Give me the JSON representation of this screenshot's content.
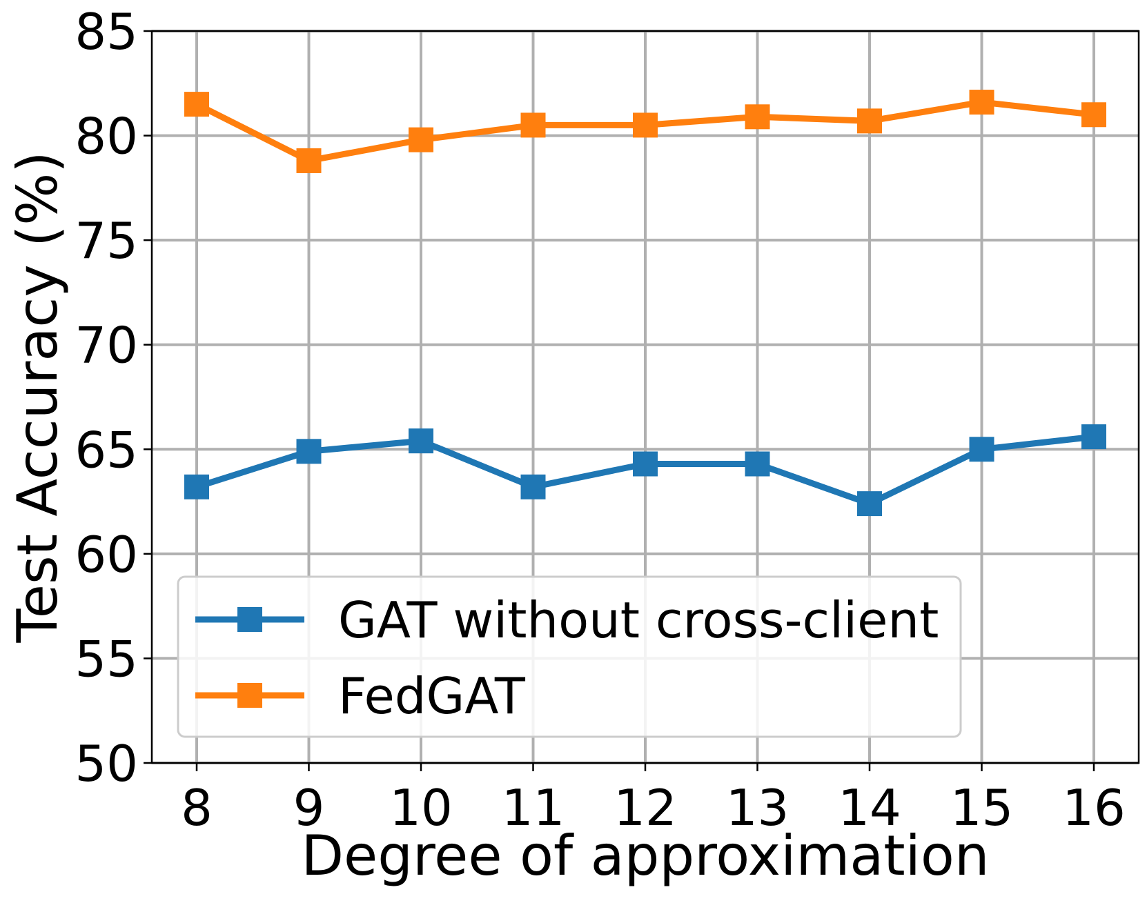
{
  "chart_data": {
    "type": "line",
    "title": "",
    "xlabel": "Degree of approximation",
    "ylabel": "Test Accuracy (%)",
    "x": [
      8,
      9,
      10,
      11,
      12,
      13,
      14,
      15,
      16
    ],
    "xticks": [
      "8",
      "9",
      "10",
      "11",
      "12",
      "13",
      "14",
      "15",
      "16"
    ],
    "yticks": [
      "50",
      "55",
      "60",
      "65",
      "70",
      "75",
      "80",
      "85"
    ],
    "ylim": [
      50,
      85
    ],
    "xlim": [
      7.6,
      16.4
    ],
    "grid": true,
    "legend_position": "lower-left",
    "series": [
      {
        "name": "GAT without cross-client",
        "color": "#1f77b4",
        "marker": "square",
        "values": [
          63.2,
          64.9,
          65.4,
          63.2,
          64.3,
          64.3,
          62.4,
          65.0,
          65.6
        ]
      },
      {
        "name": "FedGAT",
        "color": "#ff7f0e",
        "marker": "square",
        "values": [
          81.5,
          78.8,
          79.8,
          80.5,
          80.5,
          80.9,
          80.7,
          81.6,
          81.0
        ]
      }
    ]
  }
}
